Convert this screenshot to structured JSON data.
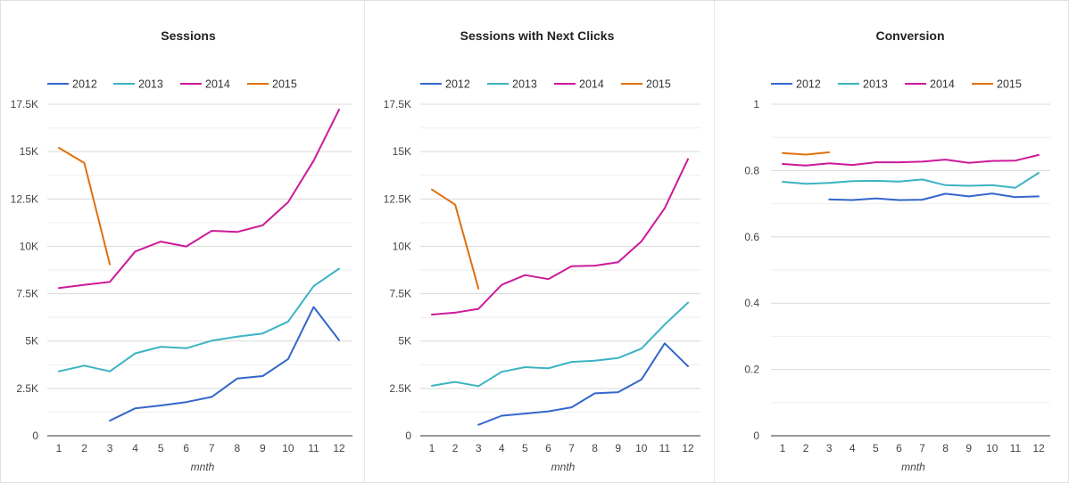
{
  "chart_data": [
    {
      "type": "line",
      "title": "Sessions",
      "xlabel": "mnth",
      "ylabel": "",
      "x": [
        1,
        2,
        3,
        4,
        5,
        6,
        7,
        8,
        9,
        10,
        11,
        12
      ],
      "x_ticks": [
        "1",
        "2",
        "3",
        "4",
        "5",
        "6",
        "7",
        "8",
        "9",
        "10",
        "11",
        "12"
      ],
      "ylim": [
        0,
        17500
      ],
      "y_ticks": [
        0,
        2500,
        5000,
        7500,
        10000,
        12500,
        15000,
        17500
      ],
      "y_tick_labels": [
        "0",
        "2.5K",
        "5K",
        "7.5K",
        "10K",
        "12.5K",
        "15K",
        "17.5K"
      ],
      "grid": true,
      "legend_position": "top-left",
      "series": [
        {
          "name": "2012",
          "color": "#3366cc",
          "values": [
            null,
            null,
            800,
            1450,
            1600,
            1780,
            2050,
            3020,
            3150,
            4050,
            6800,
            5050
          ]
        },
        {
          "name": "2013",
          "color": "#3bb3c3",
          "values": [
            3400,
            3700,
            3400,
            4350,
            4700,
            4620,
            5020,
            5230,
            5400,
            6030,
            7900,
            8820
          ]
        },
        {
          "name": "2014",
          "color": "#cc1a9a",
          "values": [
            7800,
            7970,
            8120,
            9730,
            10250,
            9990,
            10820,
            10760,
            11110,
            12330,
            14520,
            17220
          ]
        },
        {
          "name": "2015",
          "color": "#e0700b",
          "values": [
            15200,
            14400,
            9050,
            null,
            null,
            null,
            null,
            null,
            null,
            null,
            null,
            null
          ]
        }
      ]
    },
    {
      "type": "line",
      "title": "Sessions with Next Clicks",
      "xlabel": "mnth",
      "ylabel": "",
      "x": [
        1,
        2,
        3,
        4,
        5,
        6,
        7,
        8,
        9,
        10,
        11,
        12
      ],
      "x_ticks": [
        "1",
        "2",
        "3",
        "4",
        "5",
        "6",
        "7",
        "8",
        "9",
        "10",
        "11",
        "12"
      ],
      "ylim": [
        0,
        17500
      ],
      "y_ticks": [
        0,
        2500,
        5000,
        7500,
        10000,
        12500,
        15000,
        17500
      ],
      "y_tick_labels": [
        "0",
        "2.5K",
        "5K",
        "7.5K",
        "10K",
        "12.5K",
        "15K",
        "17.5K"
      ],
      "grid": true,
      "legend_position": "top-left",
      "series": [
        {
          "name": "2012",
          "color": "#3366cc",
          "values": [
            null,
            null,
            580,
            1060,
            1170,
            1290,
            1500,
            2240,
            2300,
            2970,
            4880,
            3670
          ]
        },
        {
          "name": "2013",
          "color": "#3bb3c3",
          "values": [
            2640,
            2840,
            2620,
            3380,
            3620,
            3560,
            3900,
            3960,
            4100,
            4600,
            5870,
            7030
          ]
        },
        {
          "name": "2014",
          "color": "#cc1a9a",
          "values": [
            6400,
            6500,
            6700,
            7970,
            8480,
            8270,
            8950,
            8980,
            9160,
            10260,
            12010,
            14600
          ]
        },
        {
          "name": "2015",
          "color": "#e0700b",
          "values": [
            13000,
            12200,
            7770,
            null,
            null,
            null,
            null,
            null,
            null,
            null,
            null,
            null
          ]
        }
      ]
    },
    {
      "type": "line",
      "title": "Conversion",
      "xlabel": "mnth",
      "ylabel": "",
      "x": [
        1,
        2,
        3,
        4,
        5,
        6,
        7,
        8,
        9,
        10,
        11,
        12
      ],
      "x_ticks": [
        "1",
        "2",
        "3",
        "4",
        "5",
        "6",
        "7",
        "8",
        "9",
        "10",
        "11",
        "12"
      ],
      "ylim": [
        0,
        1
      ],
      "y_ticks": [
        0,
        0.2,
        0.4,
        0.6,
        0.8,
        1
      ],
      "y_tick_labels": [
        "0",
        "0.2",
        "0.4",
        "0.6",
        "0.8",
        "1"
      ],
      "grid": true,
      "legend_position": "top-left",
      "series": [
        {
          "name": "2012",
          "color": "#3366cc",
          "values": [
            null,
            null,
            0.713,
            0.711,
            0.716,
            0.711,
            0.712,
            0.73,
            0.722,
            0.731,
            0.72,
            0.722
          ]
        },
        {
          "name": "2013",
          "color": "#3bb3c3",
          "values": [
            0.766,
            0.76,
            0.763,
            0.768,
            0.769,
            0.767,
            0.773,
            0.756,
            0.754,
            0.756,
            0.748,
            0.793
          ]
        },
        {
          "name": "2014",
          "color": "#cc1a9a",
          "values": [
            0.82,
            0.815,
            0.822,
            0.817,
            0.825,
            0.825,
            0.827,
            0.833,
            0.823,
            0.829,
            0.83,
            0.847
          ]
        },
        {
          "name": "2015",
          "color": "#e0700b",
          "values": [
            0.853,
            0.848,
            0.855,
            null,
            null,
            null,
            null,
            null,
            null,
            null,
            null,
            null
          ]
        }
      ]
    }
  ]
}
